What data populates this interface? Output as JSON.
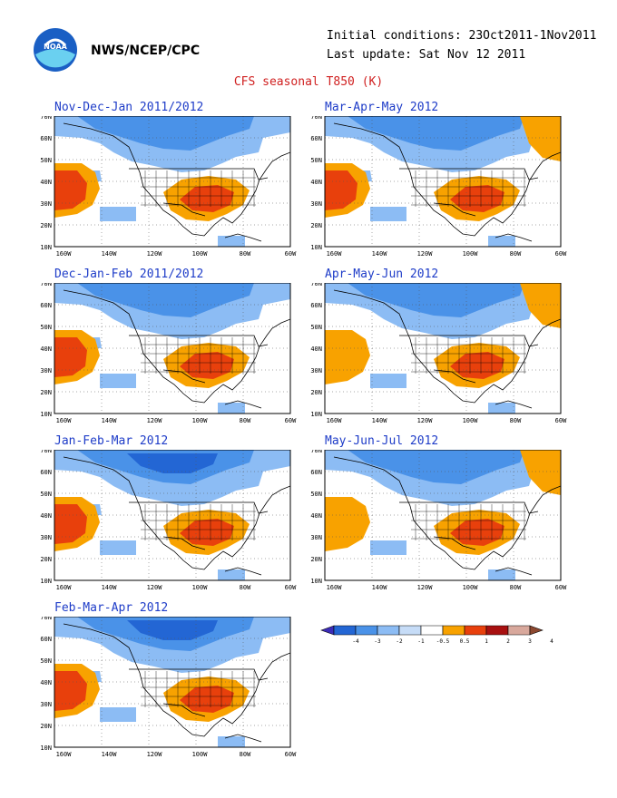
{
  "header": {
    "logo_text": "NOAA",
    "org": "NWS/NCEP/CPC",
    "initial_conditions": "Initial conditions: 23Oct2011-1Nov2011",
    "last_update": "Last update: Sat Nov 12 2011",
    "title": "CFS seasonal T850 (K)"
  },
  "axes": {
    "lat_labels": [
      "70N",
      "60N",
      "50N",
      "40N",
      "30N",
      "20N",
      "10N"
    ],
    "lon_labels": [
      "160W",
      "140W",
      "120W",
      "100W",
      "80W",
      "60W"
    ]
  },
  "legend": {
    "labels": [
      "-4",
      "-3",
      "-2",
      "-1",
      "-0.5",
      "0.5",
      "1",
      "2",
      "3",
      "4"
    ],
    "colors": [
      "#3c2cb8",
      "#2366d4",
      "#4a92e8",
      "#8cbcf4",
      "#c6dcf7",
      "#ffffff",
      "#f8a200",
      "#e8400c",
      "#a81010",
      "#d8a89c",
      "#8c4830"
    ]
  },
  "panels": [
    {
      "label": "Nov-Dec-Jan 2011/2012",
      "col": 0,
      "row": 0,
      "warm_level": 2,
      "us_warm": 1,
      "cold": 1,
      "ne_warm": 0
    },
    {
      "label": "Mar-Apr-May 2012",
      "col": 1,
      "row": 0,
      "warm_level": 2,
      "us_warm": 2,
      "cold": 1,
      "ne_warm": 1
    },
    {
      "label": "Dec-Jan-Feb 2011/2012",
      "col": 0,
      "row": 1,
      "warm_level": 2,
      "us_warm": 2,
      "cold": 1,
      "ne_warm": 0
    },
    {
      "label": "Apr-May-Jun 2012",
      "col": 1,
      "row": 1,
      "warm_level": 1,
      "us_warm": 2,
      "cold": 0,
      "ne_warm": 1
    },
    {
      "label": "Jan-Feb-Mar 2012",
      "col": 0,
      "row": 2,
      "warm_level": 2,
      "us_warm": 2,
      "cold": 2,
      "ne_warm": 0
    },
    {
      "label": "May-Jun-Jul 2012",
      "col": 1,
      "row": 2,
      "warm_level": 1,
      "us_warm": 2,
      "cold": 0,
      "ne_warm": 1
    },
    {
      "label": "Feb-Mar-Apr 2012",
      "col": 0,
      "row": 3,
      "warm_level": 2,
      "us_warm": 2,
      "cold": 2,
      "ne_warm": 0
    }
  ]
}
